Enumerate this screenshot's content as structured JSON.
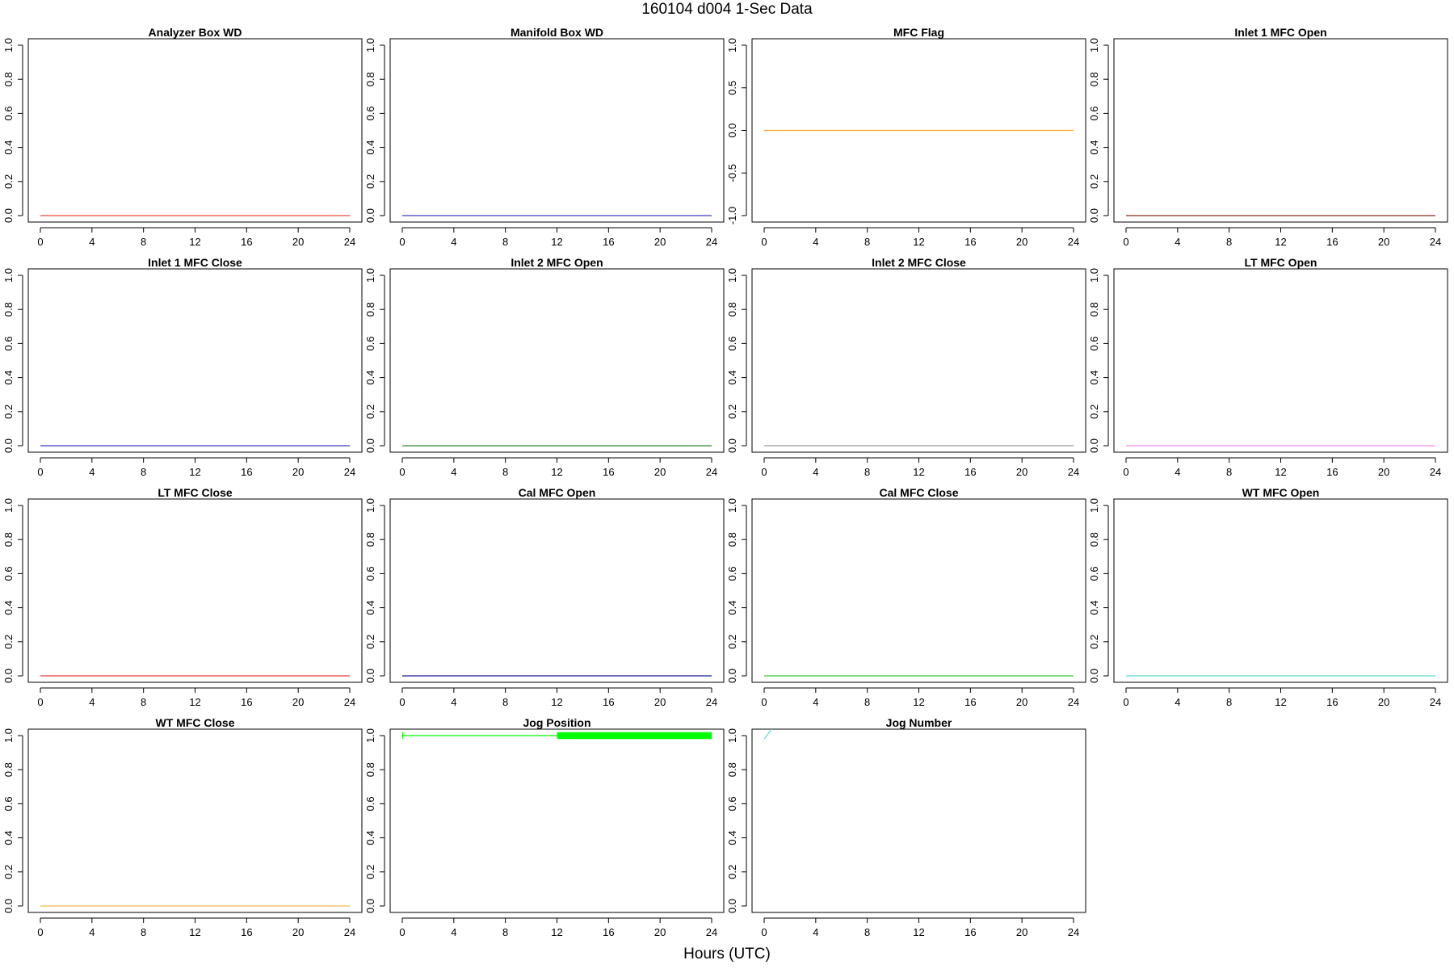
{
  "page_title": "160104   d004   1-Sec Data",
  "x_axis_title": "Hours (UTC)",
  "chart_data": [
    {
      "type": "line",
      "title": "Analyzer Box WD",
      "color": "#f04a3a",
      "x": [
        0,
        24
      ],
      "y": [
        0,
        0
      ],
      "xlim": [
        0,
        24
      ],
      "ylim": [
        0,
        1
      ],
      "yticks": [
        0.0,
        0.2,
        0.4,
        0.6,
        0.8,
        1.0
      ],
      "xticks": [
        0,
        4,
        8,
        12,
        16,
        20,
        24
      ],
      "grid": false
    },
    {
      "type": "line",
      "title": "Manifold Box WD",
      "color": "#3a3acd",
      "x": [
        0,
        24
      ],
      "y": [
        0,
        0
      ],
      "xlim": [
        0,
        24
      ],
      "ylim": [
        0,
        1
      ],
      "yticks": [
        0.0,
        0.2,
        0.4,
        0.6,
        0.8,
        1.0
      ],
      "xticks": [
        0,
        4,
        8,
        12,
        16,
        20,
        24
      ],
      "grid": false
    },
    {
      "type": "line",
      "title": "MFC Flag",
      "color": "#f5a623",
      "x": [
        0,
        24
      ],
      "y": [
        0,
        0
      ],
      "xlim": [
        0,
        24
      ],
      "ylim": [
        -1,
        1
      ],
      "yticks": [
        -1.0,
        -0.5,
        0.0,
        0.5,
        1.0
      ],
      "xticks": [
        0,
        4,
        8,
        12,
        16,
        20,
        24
      ],
      "grid": false
    },
    {
      "type": "line",
      "title": "Inlet 1 MFC Open",
      "color": "#8b2a1a",
      "x": [
        0,
        24
      ],
      "y": [
        0,
        0
      ],
      "xlim": [
        0,
        24
      ],
      "ylim": [
        0,
        1
      ],
      "yticks": [
        0.0,
        0.2,
        0.4,
        0.6,
        0.8,
        1.0
      ],
      "xticks": [
        0,
        4,
        8,
        12,
        16,
        20,
        24
      ],
      "grid": false
    },
    {
      "type": "line",
      "title": "Inlet 1 MFC Close",
      "color": "#3a3acd",
      "x": [
        0,
        24
      ],
      "y": [
        0,
        0
      ],
      "xlim": [
        0,
        24
      ],
      "ylim": [
        0,
        1
      ],
      "yticks": [
        0.0,
        0.2,
        0.4,
        0.6,
        0.8,
        1.0
      ],
      "xticks": [
        0,
        4,
        8,
        12,
        16,
        20,
        24
      ],
      "grid": false
    },
    {
      "type": "line",
      "title": "Inlet 2 MFC Open",
      "color": "#2e8b2e",
      "x": [
        0,
        24
      ],
      "y": [
        0,
        0
      ],
      "xlim": [
        0,
        24
      ],
      "ylim": [
        0,
        1
      ],
      "yticks": [
        0.0,
        0.2,
        0.4,
        0.6,
        0.8,
        1.0
      ],
      "xticks": [
        0,
        4,
        8,
        12,
        16,
        20,
        24
      ],
      "grid": false
    },
    {
      "type": "line",
      "title": "Inlet 2 MFC Close",
      "color": "#9a9a9a",
      "x": [
        0,
        24
      ],
      "y": [
        0,
        0
      ],
      "xlim": [
        0,
        24
      ],
      "ylim": [
        0,
        1
      ],
      "yticks": [
        0.0,
        0.2,
        0.4,
        0.6,
        0.8,
        1.0
      ],
      "xticks": [
        0,
        4,
        8,
        12,
        16,
        20,
        24
      ],
      "grid": false
    },
    {
      "type": "line",
      "title": "LT MFC Open",
      "color": "#f08cf0",
      "x": [
        0,
        24
      ],
      "y": [
        0,
        0
      ],
      "xlim": [
        0,
        24
      ],
      "ylim": [
        0,
        1
      ],
      "yticks": [
        0.0,
        0.2,
        0.4,
        0.6,
        0.8,
        1.0
      ],
      "xticks": [
        0,
        4,
        8,
        12,
        16,
        20,
        24
      ],
      "grid": false
    },
    {
      "type": "line",
      "title": "LT MFC Close",
      "color": "#e83a3a",
      "x": [
        0,
        24
      ],
      "y": [
        0,
        0
      ],
      "xlim": [
        0,
        24
      ],
      "ylim": [
        0,
        1
      ],
      "yticks": [
        0.0,
        0.2,
        0.4,
        0.6,
        0.8,
        1.0
      ],
      "xticks": [
        0,
        4,
        8,
        12,
        16,
        20,
        24
      ],
      "grid": false
    },
    {
      "type": "line",
      "title": "Cal MFC Open",
      "color": "#1a1a9a",
      "x": [
        0,
        24
      ],
      "y": [
        0,
        0
      ],
      "xlim": [
        0,
        24
      ],
      "ylim": [
        0,
        1
      ],
      "yticks": [
        0.0,
        0.2,
        0.4,
        0.6,
        0.8,
        1.0
      ],
      "xticks": [
        0,
        4,
        8,
        12,
        16,
        20,
        24
      ],
      "grid": false
    },
    {
      "type": "line",
      "title": "Cal MFC Close",
      "color": "#3ac43a",
      "x": [
        0,
        24
      ],
      "y": [
        0,
        0
      ],
      "xlim": [
        0,
        24
      ],
      "ylim": [
        0,
        1
      ],
      "yticks": [
        0.0,
        0.2,
        0.4,
        0.6,
        0.8,
        1.0
      ],
      "xticks": [
        0,
        4,
        8,
        12,
        16,
        20,
        24
      ],
      "grid": false
    },
    {
      "type": "line",
      "title": "WT MFC Open",
      "color": "#5ad6d6",
      "x": [
        0,
        24
      ],
      "y": [
        0,
        0
      ],
      "xlim": [
        0,
        24
      ],
      "ylim": [
        0,
        1
      ],
      "yticks": [
        0.0,
        0.2,
        0.4,
        0.6,
        0.8,
        1.0
      ],
      "xticks": [
        0,
        4,
        8,
        12,
        16,
        20,
        24
      ],
      "grid": false
    },
    {
      "type": "line",
      "title": "WT MFC Close",
      "color": "#f5b84a",
      "x": [
        0,
        24
      ],
      "y": [
        0,
        0
      ],
      "xlim": [
        0,
        24
      ],
      "ylim": [
        0,
        1
      ],
      "yticks": [
        0.0,
        0.2,
        0.4,
        0.6,
        0.8,
        1.0
      ],
      "xticks": [
        0,
        4,
        8,
        12,
        16,
        20,
        24
      ],
      "grid": false
    },
    {
      "type": "line",
      "title": "Jog Position",
      "color": "#00ff00",
      "x": [
        0,
        0.05,
        0.05,
        0.1,
        12,
        24
      ],
      "y": [
        0.98,
        1.02,
        1.0,
        1.0,
        1.0,
        1.0
      ],
      "band": [
        12,
        24
      ],
      "band_ymin": 0.98,
      "band_ymax": 1.02,
      "xlim": [
        0,
        24
      ],
      "ylim": [
        0,
        1
      ],
      "yticks": [
        0.0,
        0.2,
        0.4,
        0.6,
        0.8,
        1.0
      ],
      "xticks": [
        0,
        4,
        8,
        12,
        16,
        20,
        24
      ],
      "grid": false
    },
    {
      "type": "line",
      "title": "Jog Number",
      "color": "#5ad6d6",
      "x": [
        0,
        0.3,
        0.6
      ],
      "y": [
        0.98,
        1.01,
        1.04
      ],
      "xlim": [
        0,
        24
      ],
      "ylim": [
        0,
        1
      ],
      "yticks": [
        0.0,
        0.2,
        0.4,
        0.6,
        0.8,
        1.0
      ],
      "xticks": [
        0,
        4,
        8,
        12,
        16,
        20,
        24
      ],
      "grid": false
    }
  ]
}
